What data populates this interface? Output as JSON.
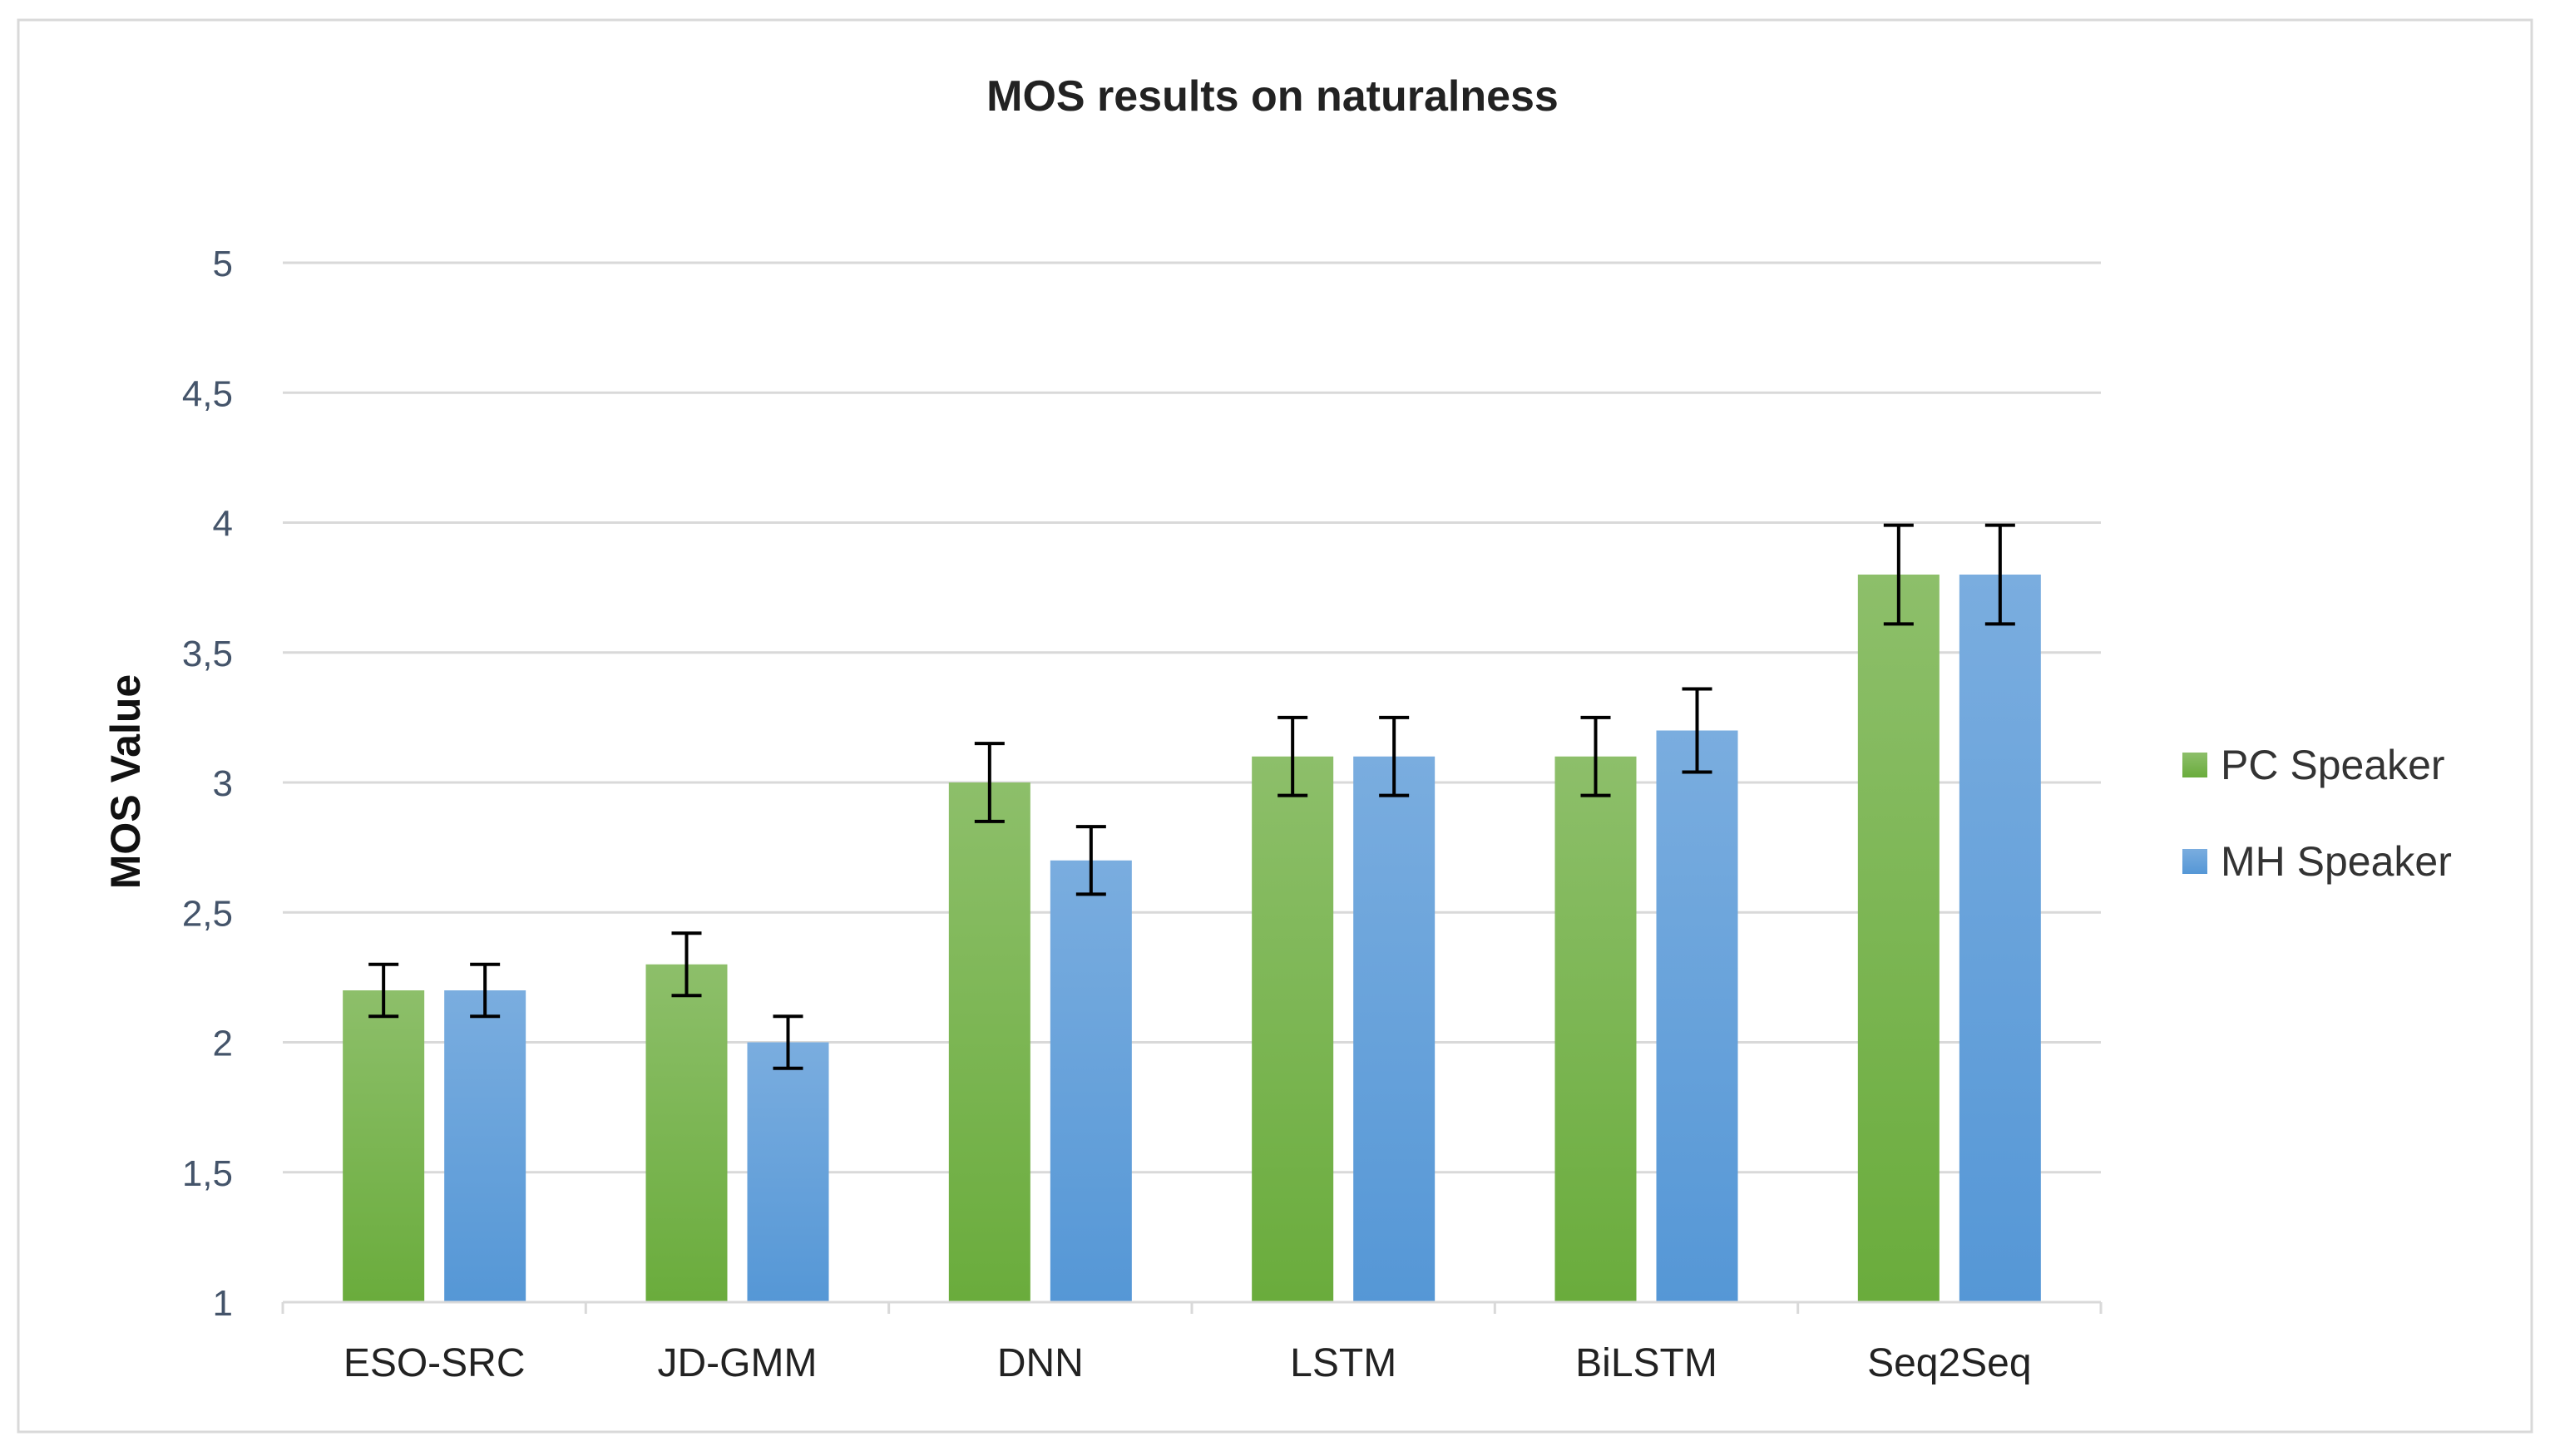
{
  "chart_data": {
    "type": "bar",
    "title": "MOS results on naturalness",
    "xlabel": "",
    "ylabel": "MOS Value",
    "ylim": [
      1,
      5
    ],
    "yticks": [
      "1",
      "1,5",
      "2",
      "2,5",
      "3",
      "3,5",
      "4",
      "4,5",
      "5"
    ],
    "ytick_values": [
      1,
      1.5,
      2,
      2.5,
      3,
      3.5,
      4,
      4.5,
      5
    ],
    "grid": true,
    "legend_position": "right",
    "categories": [
      "ESO-SRC",
      "JD-GMM",
      "DNN",
      "LSTM",
      "BiLSTM",
      "Seq2Seq"
    ],
    "series": [
      {
        "name": "PC Speaker",
        "color": "#70ad47",
        "values": [
          2.2,
          2.3,
          3.0,
          3.1,
          3.1,
          3.8
        ],
        "error": [
          0.1,
          0.12,
          0.15,
          0.15,
          0.15,
          0.19
        ]
      },
      {
        "name": "MH Speaker",
        "color": "#5b9bd5",
        "values": [
          2.2,
          2.0,
          2.7,
          3.1,
          3.2,
          3.8
        ],
        "error": [
          0.1,
          0.1,
          0.13,
          0.15,
          0.16,
          0.19
        ]
      }
    ]
  }
}
